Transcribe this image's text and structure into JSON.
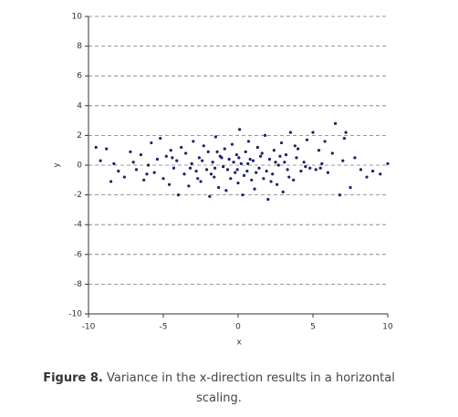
{
  "chart_data": {
    "type": "scatter",
    "x_label": "x",
    "y_label": "y",
    "color": "#1f1f6b",
    "xlim": [
      -10,
      10
    ],
    "ylim": [
      -10,
      10
    ],
    "xticks": [
      -10,
      -5,
      0,
      5,
      10
    ],
    "yticks": [
      -10,
      -8,
      -6,
      -4,
      -2,
      0,
      2,
      4,
      6,
      8,
      10
    ],
    "grid": true,
    "x": [
      -9.5,
      -9.2,
      -8.8,
      -8.5,
      -8.3,
      -8.0,
      -7.6,
      -7.2,
      -7.0,
      -6.8,
      -6.5,
      -6.3,
      -6.0,
      -5.8,
      -5.6,
      -5.4,
      -5.2,
      -5.0,
      -4.8,
      -4.6,
      -4.5,
      -4.3,
      -4.1,
      -4.0,
      -3.8,
      -3.6,
      -3.5,
      -3.3,
      -3.1,
      -3.0,
      -2.8,
      -2.6,
      -2.5,
      -2.3,
      -2.1,
      -2.0,
      -1.9,
      -1.7,
      -1.6,
      -1.5,
      -1.3,
      -1.2,
      -1.0,
      -0.9,
      -0.8,
      -0.6,
      -0.5,
      -0.4,
      -0.2,
      -0.1,
      0.0,
      0.1,
      0.2,
      0.3,
      0.5,
      0.6,
      0.7,
      0.9,
      1.0,
      1.1,
      1.3,
      1.4,
      1.5,
      1.7,
      1.8,
      2.0,
      2.1,
      2.3,
      2.4,
      2.6,
      2.7,
      2.9,
      3.0,
      3.2,
      3.3,
      3.5,
      3.7,
      3.9,
      4.0,
      4.2,
      4.4,
      4.6,
      4.8,
      5.0,
      5.2,
      5.4,
      5.6,
      5.8,
      6.0,
      6.3,
      6.5,
      6.8,
      7.0,
      7.2,
      7.5,
      7.8,
      8.2,
      8.6,
      9.0,
      9.5,
      10.0,
      -3.2,
      -2.4,
      -1.8,
      -1.1,
      -0.7,
      -0.3,
      0.4,
      0.8,
      1.2,
      1.6,
      2.2,
      2.8,
      3.4,
      -4.4,
      -2.7,
      -1.4,
      0.05,
      1.9,
      3.1,
      4.5,
      -0.05,
      0.65,
      -1.55,
      2.5,
      5.5,
      7.1,
      -6.1,
      3.8
    ],
    "y": [
      1.2,
      0.3,
      1.1,
      -1.1,
      0.1,
      -0.4,
      -0.8,
      0.9,
      0.2,
      -0.3,
      0.7,
      -1.0,
      0.0,
      1.5,
      -0.5,
      0.4,
      1.8,
      -0.9,
      0.6,
      -1.3,
      1.0,
      -0.2,
      0.3,
      -2.0,
      1.2,
      -0.6,
      0.8,
      -1.4,
      0.1,
      1.6,
      -0.4,
      0.5,
      -1.1,
      1.3,
      -0.3,
      0.9,
      -2.1,
      0.2,
      -0.8,
      1.9,
      -1.5,
      0.6,
      -0.1,
      1.1,
      -1.7,
      0.4,
      -0.9,
      1.4,
      -0.5,
      0.7,
      -1.2,
      2.4,
      0.1,
      -2.0,
      0.9,
      -0.4,
      1.6,
      -1.0,
      0.3,
      -1.6,
      1.2,
      -0.2,
      0.6,
      -0.9,
      2.0,
      -2.3,
      0.4,
      -0.6,
      1.0,
      -1.3,
      0.0,
      1.5,
      -1.8,
      0.7,
      -0.3,
      2.2,
      -1.0,
      0.5,
      1.1,
      -0.4,
      0.2,
      1.7,
      -0.2,
      2.2,
      -0.3,
      1.0,
      0.1,
      1.6,
      -0.5,
      0.8,
      2.8,
      -2.0,
      0.3,
      2.2,
      -1.5,
      0.5,
      -0.3,
      -0.8,
      -0.4,
      -0.6,
      0.1,
      -0.2,
      0.3,
      -0.6,
      0.5,
      -0.3,
      0.2,
      -0.7,
      0.4,
      -0.5,
      0.8,
      -1.1,
      0.6,
      -0.8,
      0.5,
      -0.9,
      0.9,
      0.5,
      -0.4,
      0.2,
      -0.1,
      -0.3,
      0.1,
      -0.2,
      0.2,
      -0.2,
      1.8,
      -0.6,
      1.3
    ]
  },
  "caption": {
    "label": "Figure 8.",
    "text": "Variance in the x-direction results in a horizontal scaling."
  }
}
